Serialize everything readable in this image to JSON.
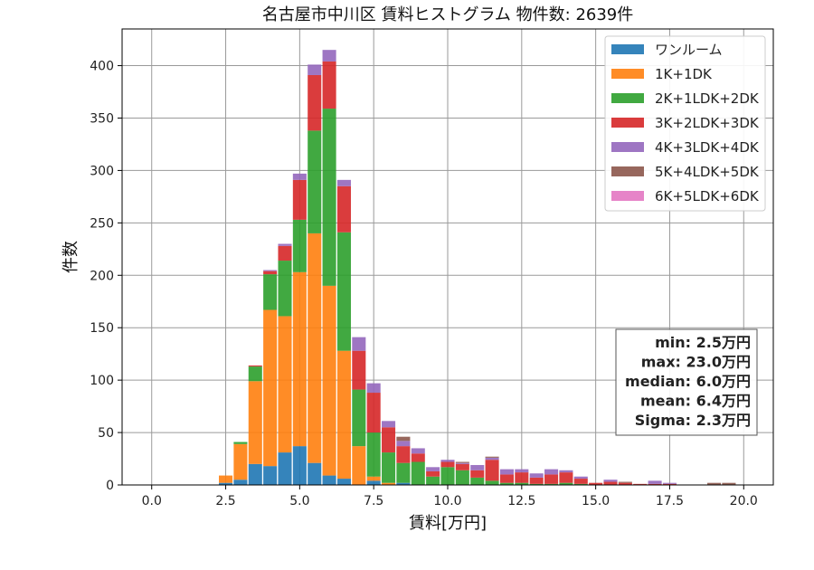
{
  "chart_data": {
    "type": "bar",
    "stacked": true,
    "title": "名古屋市中川区 賃料ヒストグラム 物件数: 2639件",
    "xlabel": "賃料[万円]",
    "ylabel": "件数",
    "xlim": [
      -1.0,
      21.0
    ],
    "ylim": [
      0,
      435
    ],
    "xticks": [
      "0.0",
      "2.5",
      "5.0",
      "7.5",
      "10.0",
      "12.5",
      "15.0",
      "17.5",
      "20.0"
    ],
    "yticks": [
      "0",
      "50",
      "100",
      "150",
      "200",
      "250",
      "300",
      "350",
      "400"
    ],
    "grid": true,
    "legend_position": "top-right",
    "bin_width": 0.5,
    "x": [
      2.5,
      3.0,
      3.5,
      4.0,
      4.5,
      5.0,
      5.5,
      6.0,
      6.5,
      7.0,
      7.5,
      8.0,
      8.5,
      9.0,
      9.5,
      10.0,
      10.5,
      11.0,
      11.5,
      12.0,
      12.5,
      13.0,
      13.5,
      14.0,
      14.5,
      15.0,
      15.5,
      16.0,
      16.5,
      17.0,
      17.5,
      18.0,
      18.5,
      19.0,
      19.5,
      20.0
    ],
    "series": [
      {
        "name": "ワンルーム",
        "color": "#1f77b4",
        "values": [
          2,
          5,
          20,
          18,
          31,
          37,
          21,
          9,
          6,
          0,
          4,
          0,
          2,
          0,
          0,
          0,
          0,
          0,
          0,
          0,
          0,
          0,
          0,
          0,
          0,
          0,
          0,
          0,
          0,
          0,
          0,
          0,
          0,
          0,
          0,
          0
        ]
      },
      {
        "name": "1K+1DK",
        "color": "#ff7f0e",
        "values": [
          7,
          34,
          79,
          149,
          130,
          166,
          219,
          181,
          122,
          37,
          4,
          2,
          0,
          0,
          0,
          0,
          0,
          0,
          0,
          0,
          0,
          0,
          0,
          0,
          0,
          0,
          0,
          0,
          0,
          0,
          0,
          0,
          0,
          0,
          0,
          0
        ]
      },
      {
        "name": "2K+1LDK+2DK",
        "color": "#2ca02c",
        "values": [
          0,
          2,
          14,
          34,
          53,
          50,
          98,
          169,
          113,
          54,
          42,
          29,
          19,
          22,
          8,
          17,
          14,
          7,
          4,
          2,
          2,
          1,
          1,
          2,
          1,
          0,
          0,
          0,
          0,
          0,
          0,
          0,
          0,
          0,
          0,
          0
        ]
      },
      {
        "name": "3K+2LDK+3DK",
        "color": "#d62728",
        "values": [
          0,
          0,
          1,
          3,
          14,
          38,
          53,
          45,
          44,
          37,
          38,
          24,
          16,
          8,
          5,
          5,
          6,
          7,
          20,
          8,
          10,
          6,
          9,
          10,
          5,
          2,
          3,
          2,
          1,
          1,
          1,
          0,
          0,
          0,
          0,
          0
        ]
      },
      {
        "name": "4K+3LDK+4DK",
        "color": "#9467bd",
        "values": [
          0,
          0,
          0,
          1,
          2,
          6,
          10,
          11,
          6,
          13,
          9,
          6,
          5,
          5,
          4,
          2,
          1,
          5,
          2,
          5,
          3,
          4,
          5,
          2,
          2,
          0,
          2,
          0,
          0,
          3,
          1,
          0,
          0,
          0,
          0,
          0
        ]
      },
      {
        "name": "5K+4LDK+5DK",
        "color": "#8c564b",
        "values": [
          0,
          0,
          0,
          0,
          0,
          0,
          0,
          0,
          0,
          0,
          0,
          0,
          4,
          0,
          0,
          0,
          1,
          0,
          1,
          0,
          0,
          0,
          0,
          0,
          0,
          0,
          0,
          1,
          0,
          0,
          0,
          0,
          0,
          2,
          2,
          0
        ]
      },
      {
        "name": "6K+5LDK+6DK",
        "color": "#e377c2",
        "values": [
          0,
          0,
          0,
          0,
          0,
          0,
          0,
          0,
          0,
          0,
          0,
          0,
          0,
          0,
          0,
          0,
          0,
          0,
          0,
          0,
          0,
          0,
          0,
          0,
          0,
          0,
          0,
          0,
          0,
          0,
          0,
          0,
          0,
          0,
          0,
          0
        ]
      }
    ],
    "stats": [
      "min: 2.5万円",
      "max: 23.0万円",
      "median: 6.0万円",
      "mean: 6.4万円",
      "Sigma: 2.3万円"
    ]
  }
}
